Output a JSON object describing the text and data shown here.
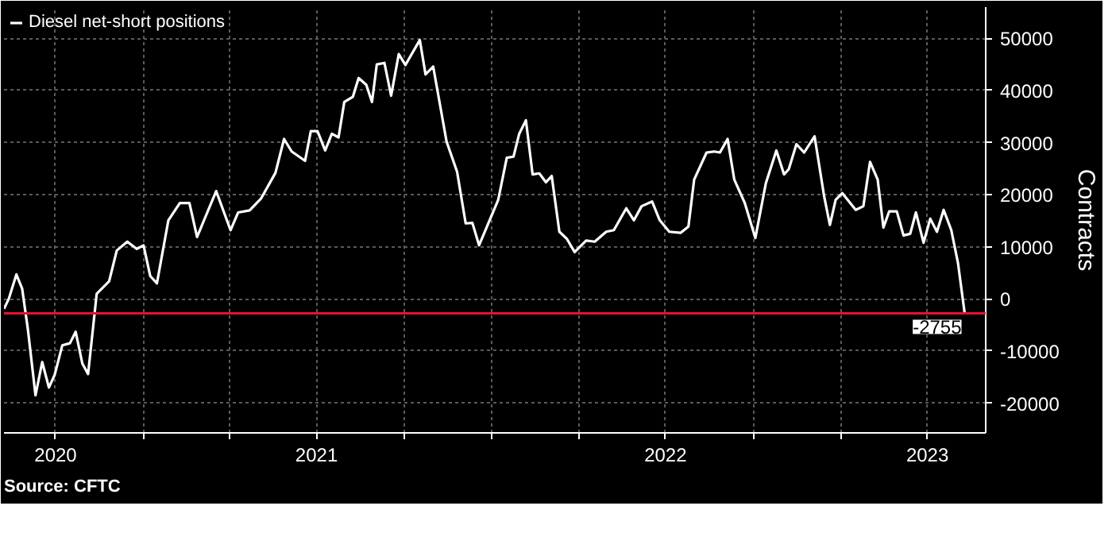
{
  "chart_data": {
    "type": "line",
    "ylabel": "Contracts",
    "x": [
      "2020-08-08",
      "2020-08-13",
      "2020-08-21",
      "2020-08-27",
      "2020-09-02",
      "2020-09-10",
      "2020-09-17",
      "2020-09-24",
      "2020-09-30",
      "2020-10-08",
      "2020-10-16",
      "2020-10-22",
      "2020-10-29",
      "2020-11-04",
      "2020-11-13",
      "2020-11-26",
      "2020-12-04",
      "2020-12-15",
      "2020-12-25",
      "2021-01-01",
      "2021-01-08",
      "2021-01-15",
      "2021-01-27",
      "2021-02-08",
      "2021-02-18",
      "2021-02-26",
      "2021-03-18",
      "2021-04-02",
      "2021-04-10",
      "2021-04-22",
      "2021-05-04",
      "2021-05-19",
      "2021-05-28",
      "2021-06-05",
      "2021-06-19",
      "2021-06-25",
      "2021-07-02",
      "2021-07-10",
      "2021-07-17",
      "2021-07-24",
      "2021-07-30",
      "2021-08-08",
      "2021-08-14",
      "2021-08-22",
      "2021-08-28",
      "2021-09-02",
      "2021-09-10",
      "2021-09-17",
      "2021-09-25",
      "2021-10-02",
      "2021-10-17",
      "2021-10-23",
      "2021-10-31",
      "2021-11-14",
      "2021-11-25",
      "2021-12-04",
      "2021-12-11",
      "2021-12-18",
      "2021-12-27",
      "2022-01-07",
      "2022-01-16",
      "2022-01-23",
      "2022-01-29",
      "2022-02-05",
      "2022-02-12",
      "2022-02-19",
      "2022-02-26",
      "2022-03-04",
      "2022-03-12",
      "2022-03-20",
      "2022-03-28",
      "2022-04-09",
      "2022-04-18",
      "2022-04-30",
      "2022-05-08",
      "2022-05-21",
      "2022-05-29",
      "2022-06-06",
      "2022-06-17",
      "2022-06-25",
      "2022-07-05",
      "2022-07-17",
      "2022-07-25",
      "2022-07-31",
      "2022-08-13",
      "2022-08-21",
      "2022-08-27",
      "2022-09-04",
      "2022-09-11",
      "2022-09-22",
      "2022-10-03",
      "2022-10-14",
      "2022-10-25",
      "2022-11-02",
      "2022-11-07",
      "2022-11-15",
      "2022-11-23",
      "2022-12-04",
      "2022-12-14",
      "2022-12-20",
      "2022-12-26",
      "2023-01-02",
      "2023-01-16",
      "2023-01-24",
      "2023-01-31",
      "2023-02-08",
      "2023-02-14",
      "2023-02-20",
      "2023-02-28",
      "2023-03-07",
      "2023-03-14",
      "2023-03-20",
      "2023-03-28",
      "2023-04-04",
      "2023-04-11",
      "2023-04-18",
      "2023-04-26",
      "2023-05-03",
      "2023-05-10"
    ],
    "series": [
      {
        "name": "Diesel net-short positions",
        "color": "#ffffff",
        "values": [
          -1900,
          0,
          4700,
          2000,
          -5800,
          -18500,
          -12100,
          -17000,
          -14600,
          -8900,
          -8500,
          -6300,
          -12400,
          -14400,
          1000,
          3400,
          9300,
          11000,
          9600,
          10300,
          4400,
          3000,
          15100,
          18400,
          18400,
          11900,
          20700,
          13200,
          16600,
          17000,
          19300,
          24200,
          30700,
          28300,
          26500,
          32200,
          32200,
          28500,
          31700,
          31000,
          37800,
          38800,
          42400,
          41100,
          37800,
          45000,
          45300,
          39000,
          47000,
          44900,
          49700,
          43100,
          44600,
          30200,
          24400,
          14500,
          14600,
          10300,
          14200,
          19000,
          27100,
          27300,
          31700,
          34300,
          23900,
          24100,
          22400,
          23600,
          12900,
          11500,
          9000,
          11200,
          11000,
          12900,
          13200,
          17400,
          15100,
          17800,
          18700,
          15100,
          12900,
          12700,
          13900,
          22900,
          28100,
          28300,
          28100,
          30700,
          22900,
          18400,
          11700,
          22200,
          28500,
          23900,
          24900,
          29700,
          28100,
          31200,
          19700,
          14200,
          19000,
          20300,
          17100,
          17800,
          26300,
          22900,
          13700,
          16800,
          16800,
          12200,
          12500,
          16600,
          10800,
          15400,
          12900,
          17100,
          13200,
          6900,
          -2755
        ]
      }
    ],
    "xlim": [
      "2020-08-08",
      "2023-06-01"
    ],
    "xticks": [
      {
        "value": "2020-10-01",
        "label": "2020"
      },
      {
        "value": "2021-01-01",
        "label": null
      },
      {
        "value": "2021-04-01",
        "label": null
      },
      {
        "value": "2021-07-01",
        "label": "2021"
      },
      {
        "value": "2021-10-01",
        "label": null
      },
      {
        "value": "2022-01-01",
        "label": null
      },
      {
        "value": "2022-04-01",
        "label": null
      },
      {
        "value": "2022-07-01",
        "label": "2022"
      },
      {
        "value": "2022-10-01",
        "label": null
      },
      {
        "value": "2023-01-01",
        "label": null
      },
      {
        "value": "2023-04-01",
        "label": "2023"
      }
    ],
    "ylim": [
      -25700,
      56000
    ],
    "yticks": [
      -20000,
      -10000,
      0,
      10000,
      20000,
      30000,
      40000,
      50000
    ],
    "ref_lines": [
      {
        "axis": "y",
        "value": -2755,
        "color": "#e8112d"
      }
    ],
    "annotations": [
      {
        "text": "-2755",
        "x": "2023-05-10",
        "y": -2755
      },
      "Source: CFTC"
    ],
    "grid": true,
    "legend": "top left"
  }
}
